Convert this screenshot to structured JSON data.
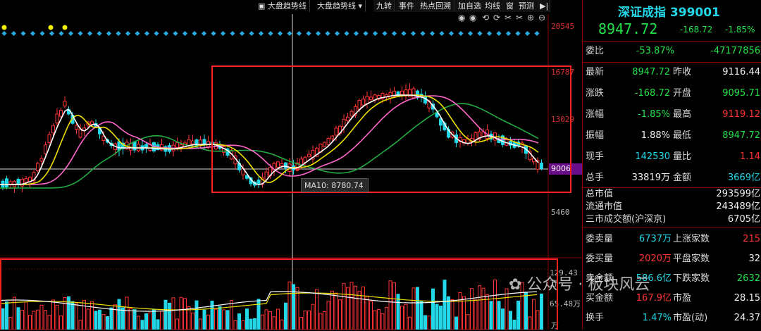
{
  "toolbar": {
    "items": [
      "大盘趋势线",
      "大盘趋势线",
      "九转",
      "事件",
      "热点回溯",
      "加自选",
      "均线",
      "窗",
      "预测"
    ]
  },
  "axis": {
    "price_ticks": [
      "20545",
      "16787",
      "13029",
      "9006",
      "5460"
    ],
    "volume_ticks": [
      "129.43万",
      "65.48万",
      "万"
    ]
  },
  "tooltip": {
    "text": "MA10: 8780.74"
  },
  "current_price_tag": "9006",
  "watermark": "公众号 · 板块风云",
  "panel": {
    "title": "深证成指 399001",
    "price": "8947.72",
    "change": "-168.72",
    "change_pct": "-1.85%",
    "wei_bi_label": "委比",
    "wei_bi": "-53.87%",
    "wei_cha": "-47177856",
    "rows": [
      {
        "l1": "最新",
        "v1": "8947.72",
        "c1": "green",
        "l2": "昨收",
        "v2": "9116.44",
        "c2": "white"
      },
      {
        "l1": "涨跌",
        "v1": "-168.72",
        "c1": "green",
        "l2": "开盘",
        "v2": "9095.71",
        "c2": "green"
      },
      {
        "l1": "涨幅",
        "v1": "-1.85%",
        "c1": "green",
        "l2": "最高",
        "v2": "9119.12",
        "c2": "red"
      },
      {
        "l1": "振幅",
        "v1": "1.88%",
        "c1": "white",
        "l2": "最低",
        "v2": "8947.72",
        "c2": "green"
      },
      {
        "l1": "现手",
        "v1": "142530",
        "c1": "cyan",
        "l2": "量比",
        "v2": "1.14",
        "c2": "red"
      },
      {
        "l1": "总手",
        "v1": "33819万",
        "c1": "white",
        "l2": "金额",
        "v2": "3669亿",
        "c2": "cyan"
      }
    ],
    "market": [
      {
        "l": "总市值",
        "v": "293599亿"
      },
      {
        "l": "流通市值",
        "v": "243489亿"
      },
      {
        "l": "三市成交额(沪深京)",
        "v": "6705亿"
      }
    ],
    "order": [
      {
        "l1": "委卖量",
        "v1": "6737万",
        "c1": "cyan",
        "l2": "上涨家数",
        "v2": "215",
        "c2": "red"
      },
      {
        "l1": "委买量",
        "v1": "2020万",
        "c1": "red",
        "l2": "平盘家数",
        "v2": "32",
        "c2": "white"
      },
      {
        "l1": "卖金额",
        "v1": "586.6亿",
        "c1": "cyan",
        "l2": "下跌家数",
        "v2": "2632",
        "c2": "green"
      },
      {
        "l1": "买金额",
        "v1": "167.9亿",
        "c1": "red",
        "l2": "市盈",
        "v2": "28.15",
        "c2": "white"
      },
      {
        "l1": "换手",
        "v1": "1.47%",
        "c1": "cyan",
        "l2": "市盈(动)",
        "v2": "24.37",
        "c2": "white"
      }
    ]
  },
  "colors": {
    "up": "#ff3333",
    "down": "#22d8e8",
    "ma5": "#ffffff",
    "ma10": "#f0e000",
    "ma20": "#ff66cc",
    "ma60": "#22aa44",
    "highlight": "#ff2020"
  },
  "icons": [
    "eye-icon",
    "eye-icon",
    "undo-icon",
    "redo-icon",
    "scissors-icon",
    "scissors-icon",
    "zoom-in-icon",
    "zoom-out-icon"
  ]
}
